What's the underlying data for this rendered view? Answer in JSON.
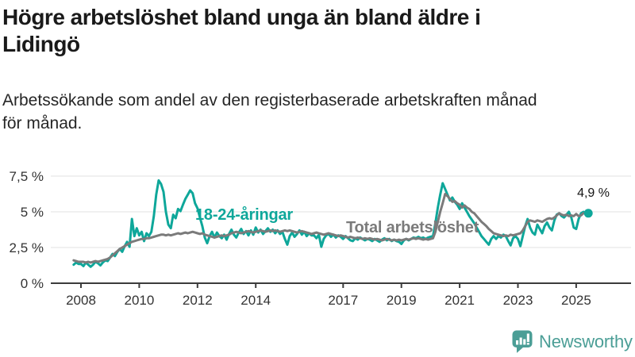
{
  "header": {
    "title_lines": [
      "Högre arbetslöshet bland unga än bland äldre i",
      "Lidingö"
    ],
    "title_full": "Högre arbetslöshet bland unga än bland äldre i Lidingö",
    "subtitle_lines": [
      "Arbetssökande som andel av den registerbaserade arbetskraften månad",
      "för månad."
    ],
    "subtitle_full": "Arbetssökande som andel av den registerbaserade arbetskraften månad för månad."
  },
  "colors": {
    "teal": "#0ea79a",
    "gray_line": "#7b7b7b",
    "gray_label": "#7b7b7b",
    "grid": "#e2e2e2",
    "axis": "#3c3c3c",
    "tick_text": "#333333",
    "title_text": "#1a1a1a",
    "annotation_text": "#141414",
    "logo_teal": "#4b9e96"
  },
  "chart_data": {
    "type": "line",
    "title": "Högre arbetslöshet bland unga än bland äldre i Lidingö",
    "subtitle": "Arbetssökande som andel av den registerbaserade arbetskraften månad för månad.",
    "x_start": 2007.75,
    "points_per_year": 12,
    "x_tick_years": [
      2008,
      2010,
      2012,
      2014,
      2017,
      2019,
      2021,
      2023,
      2025
    ],
    "y_ticks": [
      {
        "value": 0,
        "label": "0 %"
      },
      {
        "value": 2.5,
        "label": "2,5 %"
      },
      {
        "value": 5,
        "label": "5 %"
      },
      {
        "value": 7.5,
        "label": "7,5 %"
      }
    ],
    "ylim": [
      0,
      8.3
    ],
    "grid": true,
    "legend": "inline-labels",
    "end_annotation": {
      "label": "4,9 %",
      "series": "18-24-åringar",
      "value": 4.9
    },
    "series": [
      {
        "id": "youth",
        "name": "18-24-åringar",
        "color": "#0ea79a",
        "values": [
          1.3,
          1.45,
          1.35,
          1.35,
          1.2,
          1.45,
          1.3,
          1.15,
          1.3,
          1.5,
          1.4,
          1.25,
          1.45,
          1.6,
          1.55,
          1.8,
          2.05,
          1.9,
          2.2,
          2.4,
          2.2,
          2.6,
          2.9,
          2.55,
          4.5,
          3.3,
          3.85,
          3.35,
          3.6,
          2.95,
          3.5,
          3.3,
          3.6,
          4.7,
          6.2,
          7.2,
          6.95,
          6.4,
          5.0,
          4.1,
          3.85,
          4.8,
          4.55,
          5.2,
          5.05,
          5.5,
          5.9,
          6.2,
          6.5,
          6.3,
          5.6,
          5.25,
          4.6,
          4.0,
          3.2,
          2.8,
          3.3,
          3.6,
          3.2,
          3.55,
          3.3,
          3.15,
          3.4,
          3.05,
          3.45,
          3.75,
          3.4,
          3.2,
          3.55,
          3.8,
          3.45,
          3.65,
          3.35,
          3.7,
          3.4,
          3.9,
          3.55,
          3.75,
          3.45,
          3.65,
          3.85,
          3.6,
          3.75,
          3.5,
          3.7,
          3.45,
          3.6,
          3.1,
          2.7,
          3.3,
          3.55,
          3.25,
          3.45,
          3.7,
          3.4,
          3.6,
          3.3,
          3.5,
          3.35,
          3.35,
          3.15,
          3.4,
          2.55,
          3.1,
          3.35,
          3.45,
          3.25,
          3.4,
          3.2,
          3.35,
          3.25,
          3.1,
          3.3,
          3.15,
          3.0,
          2.95,
          3.15,
          3.05,
          3.2,
          3.1,
          3.0,
          3.1,
          3.05,
          2.95,
          3.1,
          3.0,
          2.9,
          3.05,
          3.15,
          3.0,
          3.1,
          2.95,
          3.05,
          2.95,
          2.9,
          2.75,
          3.0,
          3.1,
          3.0,
          3.1,
          3.2,
          3.15,
          3.25,
          3.15,
          3.2,
          3.1,
          3.2,
          3.25,
          3.3,
          4.2,
          5.3,
          6.2,
          7.0,
          6.6,
          6.2,
          5.8,
          6.0,
          5.7,
          5.5,
          5.2,
          5.6,
          5.3,
          5.0,
          4.7,
          4.45,
          4.2,
          3.9,
          3.6,
          3.3,
          3.1,
          2.9,
          2.7,
          3.1,
          3.3,
          3.1,
          3.3,
          3.2,
          3.4,
          3.3,
          2.95,
          2.65,
          3.15,
          3.3,
          3.1,
          2.6,
          3.3,
          4.0,
          4.5,
          3.9,
          3.55,
          3.4,
          4.1,
          3.8,
          3.5,
          4.0,
          4.25,
          3.9,
          3.7,
          4.4,
          4.8,
          4.9,
          4.7,
          4.6,
          4.8,
          5.0,
          4.6,
          3.9,
          3.8,
          4.5,
          4.9,
          5.0,
          4.85,
          4.9
        ]
      },
      {
        "id": "total",
        "name": "Total arbetslöshet",
        "color": "#7b7b7b",
        "values": [
          1.6,
          1.55,
          1.5,
          1.5,
          1.5,
          1.45,
          1.5,
          1.45,
          1.5,
          1.55,
          1.5,
          1.55,
          1.6,
          1.65,
          1.7,
          1.8,
          1.95,
          2.1,
          2.25,
          2.4,
          2.5,
          2.6,
          2.7,
          2.8,
          2.9,
          2.95,
          3.0,
          3.05,
          3.1,
          3.1,
          3.15,
          3.15,
          3.2,
          3.25,
          3.3,
          3.35,
          3.4,
          3.4,
          3.35,
          3.4,
          3.35,
          3.4,
          3.45,
          3.5,
          3.45,
          3.5,
          3.55,
          3.5,
          3.55,
          3.6,
          3.55,
          3.5,
          3.45,
          3.5,
          3.4,
          3.35,
          3.3,
          3.25,
          3.2,
          3.25,
          3.3,
          3.35,
          3.3,
          3.35,
          3.4,
          3.5,
          3.55,
          3.6,
          3.55,
          3.5,
          3.55,
          3.6,
          3.65,
          3.6,
          3.55,
          3.6,
          3.65,
          3.7,
          3.65,
          3.6,
          3.65,
          3.7,
          3.65,
          3.7,
          3.65,
          3.6,
          3.65,
          3.7,
          3.65,
          3.7,
          3.65,
          3.6,
          3.55,
          3.6,
          3.65,
          3.6,
          3.55,
          3.5,
          3.45,
          3.5,
          3.55,
          3.5,
          3.45,
          3.4,
          3.45,
          3.5,
          3.45,
          3.4,
          3.35,
          3.3,
          3.35,
          3.3,
          3.25,
          3.2,
          3.25,
          3.2,
          3.15,
          3.2,
          3.15,
          3.1,
          3.15,
          3.1,
          3.15,
          3.1,
          3.05,
          3.1,
          3.05,
          3.0,
          3.05,
          3.1,
          3.05,
          3.0,
          3.05,
          3.0,
          3.05,
          3.0,
          3.05,
          3.1,
          3.05,
          3.1,
          3.15,
          3.1,
          3.15,
          3.1,
          3.05,
          3.1,
          3.05,
          3.1,
          3.15,
          3.6,
          4.3,
          5.0,
          5.6,
          6.25,
          6.1,
          5.9,
          5.7,
          5.75,
          5.6,
          5.5,
          5.3,
          5.45,
          5.3,
          5.2,
          5.0,
          4.9,
          4.7,
          4.5,
          4.3,
          4.15,
          4.0,
          3.8,
          3.65,
          3.5,
          3.45,
          3.4,
          3.35,
          3.3,
          3.35,
          3.3,
          3.4,
          3.35,
          3.4,
          3.45,
          3.5,
          3.7,
          4.0,
          4.3,
          4.4,
          4.35,
          4.3,
          4.4,
          4.35,
          4.3,
          4.4,
          4.5,
          4.55,
          4.5,
          4.6,
          4.75,
          4.9,
          4.8,
          4.75,
          4.8,
          4.7,
          4.75,
          4.7,
          4.85,
          4.7,
          4.75,
          4.9,
          4.95,
          5.0
        ]
      }
    ]
  },
  "footer": {
    "brand": "Newsworthy"
  }
}
